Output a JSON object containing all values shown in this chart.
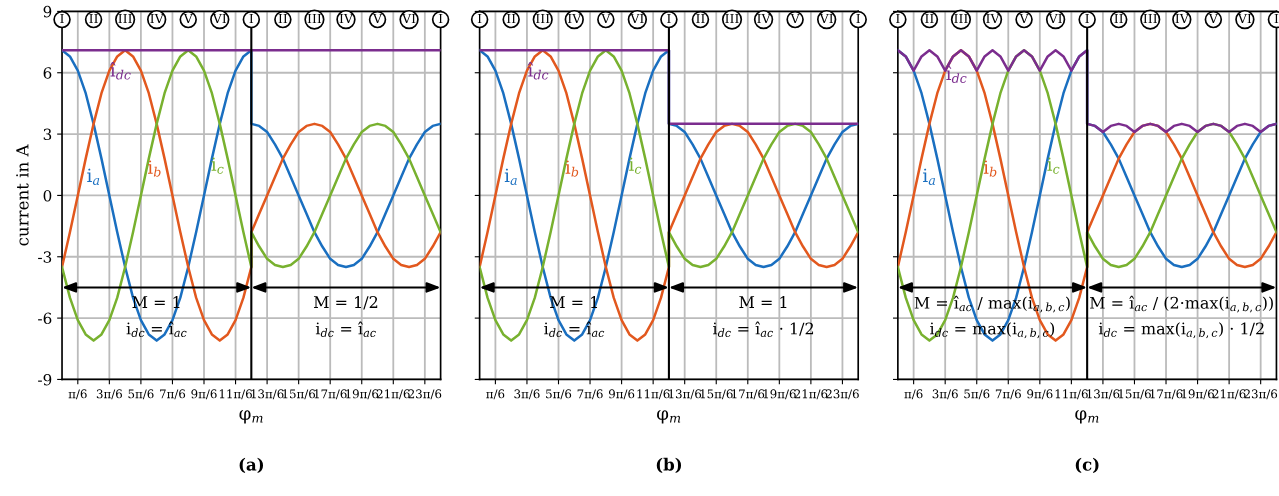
{
  "chart_data": [
    {
      "type": "line",
      "title": "(a)",
      "xlabel": "φ$_{m}$",
      "ylabel": "current in A",
      "legend": false,
      "grid": true,
      "x": [
        0,
        0.2618,
        0.5236,
        0.7854,
        1.0472,
        1.309,
        1.5708,
        1.8326,
        2.0944,
        2.3562,
        2.618,
        2.8798,
        3.1416,
        3.4034,
        3.6652,
        3.927,
        4.1888,
        4.4506,
        4.7124,
        4.9742,
        5.236,
        5.4978,
        5.7596,
        6.0214,
        6.2832,
        6.2832,
        6.545,
        6.8068,
        7.0686,
        7.3304,
        7.5922,
        7.854,
        8.1158,
        8.3776,
        8.6394,
        8.9012,
        9.163,
        9.4248,
        9.6866,
        9.9484,
        10.2102,
        10.472,
        10.7338,
        10.9956,
        11.2574,
        11.5192,
        11.781,
        12.0428,
        12.3046,
        12.5664
      ],
      "series": [
        {
          "name": "i$_{a}$",
          "color": "#1a6fc0",
          "values": [
            7.1,
            6.8,
            6.1,
            5.0,
            3.5,
            1.8,
            0,
            -1.8,
            -3.5,
            -5.0,
            -6.1,
            -6.8,
            -7.1,
            -6.8,
            -6.1,
            -5.0,
            -3.5,
            -1.8,
            0,
            1.8,
            3.5,
            5.0,
            6.1,
            6.8,
            7.1,
            3.5,
            3.4,
            3.1,
            2.5,
            1.8,
            0.9,
            0,
            -0.9,
            -1.8,
            -2.5,
            -3.1,
            -3.4,
            -3.5,
            -3.4,
            -3.1,
            -2.5,
            -1.8,
            -0.9,
            0,
            0.9,
            1.8,
            2.5,
            3.1,
            3.4,
            3.5
          ]
        },
        {
          "name": "i$_{b}$",
          "color": "#e2581e",
          "values": [
            -3.5,
            -1.8,
            0,
            1.8,
            3.5,
            5.0,
            6.1,
            6.8,
            7.1,
            6.8,
            6.1,
            5.0,
            3.5,
            1.8,
            0,
            -1.8,
            -3.5,
            -5.0,
            -6.1,
            -6.8,
            -7.1,
            -6.8,
            -6.1,
            -5.0,
            -3.5,
            -1.8,
            -0.9,
            0,
            0.9,
            1.8,
            2.5,
            3.1,
            3.4,
            3.5,
            3.4,
            3.1,
            2.5,
            1.8,
            0.9,
            0,
            -0.9,
            -1.8,
            -2.5,
            -3.1,
            -3.4,
            -3.5,
            -3.4,
            -3.1,
            -2.5,
            -1.8
          ]
        },
        {
          "name": "i$_{c}$",
          "color": "#78b12f",
          "values": [
            -3.5,
            -5.0,
            -6.1,
            -6.8,
            -7.1,
            -6.8,
            -6.1,
            -5.0,
            -3.5,
            -1.8,
            0,
            1.8,
            3.5,
            5.0,
            6.1,
            6.8,
            7.1,
            6.8,
            6.1,
            5.0,
            3.5,
            1.8,
            0,
            -1.8,
            -3.5,
            -1.8,
            -2.5,
            -3.1,
            -3.4,
            -3.5,
            -3.4,
            -3.1,
            -2.5,
            -1.8,
            -0.9,
            0,
            0.9,
            1.8,
            2.5,
            3.1,
            3.4,
            3.5,
            3.4,
            3.1,
            2.5,
            1.8,
            0.9,
            0,
            -0.9,
            -1.8
          ]
        },
        {
          "name": "î$_{dc}$",
          "color": "#7b2d8e",
          "x": [
            0,
            6.2832,
            12.5664
          ],
          "values": [
            7.1,
            7.1,
            7.1
          ]
        }
      ],
      "xlim": [
        0,
        12.5664
      ],
      "ylim": [
        -9,
        9
      ],
      "yticks": [
        -9,
        -6,
        -3,
        0,
        3,
        6,
        9
      ],
      "xticks": [
        {
          "value": 0.5236,
          "label": "π/6"
        },
        {
          "value": 1.5708,
          "label": "3π/6"
        },
        {
          "value": 2.618,
          "label": "5π/6"
        },
        {
          "value": 3.6652,
          "label": "7π/6"
        },
        {
          "value": 4.7124,
          "label": "9π/6"
        },
        {
          "value": 5.7596,
          "label": "11π/6"
        },
        {
          "value": 6.8068,
          "label": "13π/6"
        },
        {
          "value": 7.854,
          "label": "15π/6"
        },
        {
          "value": 8.9012,
          "label": "17π/6"
        },
        {
          "value": 9.9484,
          "label": "19π/6"
        },
        {
          "value": 10.9956,
          "label": "21π/6"
        },
        {
          "value": 12.0428,
          "label": "23π/6"
        }
      ],
      "ref_lines": [
        {
          "axis": "x",
          "value": 6.2832,
          "color": "#000000"
        }
      ],
      "annotations": [
        {
          "text": "I",
          "x": 0,
          "y": 8.6
        },
        {
          "text": "II",
          "x": 1.0472,
          "y": 8.6
        },
        {
          "text": "III",
          "x": 2.0944,
          "y": 8.6
        },
        {
          "text": "IV",
          "x": 3.1416,
          "y": 8.6
        },
        {
          "text": "V",
          "x": 4.1888,
          "y": 8.6
        },
        {
          "text": "VI",
          "x": 5.236,
          "y": 8.6
        },
        {
          "text": "I",
          "x": 6.2832,
          "y": 8.6
        },
        {
          "text": "II",
          "x": 7.3304,
          "y": 8.6
        },
        {
          "text": "III",
          "x": 8.3776,
          "y": 8.6
        },
        {
          "text": "IV",
          "x": 9.4248,
          "y": 8.6
        },
        {
          "text": "V",
          "x": 10.472,
          "y": 8.6
        },
        {
          "text": "VI",
          "x": 11.5192,
          "y": 8.6
        },
        {
          "text": "I",
          "x": 12.5664,
          "y": 8.6
        },
        "M = 1",
        "i$_{dc}$ = î$_{ac}$",
        "M = 1/2",
        "i$_{dc}$ = î$_{ac}$"
      ]
    },
    {
      "type": "line",
      "title": "(b)",
      "xlabel": "φ$_{m}$",
      "legend": false,
      "grid": true,
      "tick_labels": "x",
      "x": [
        0,
        0.2618,
        0.5236,
        0.7854,
        1.0472,
        1.309,
        1.5708,
        1.8326,
        2.0944,
        2.3562,
        2.618,
        2.8798,
        3.1416,
        3.4034,
        3.6652,
        3.927,
        4.1888,
        4.4506,
        4.7124,
        4.9742,
        5.236,
        5.4978,
        5.7596,
        6.0214,
        6.2832,
        6.2832,
        6.545,
        6.8068,
        7.0686,
        7.3304,
        7.5922,
        7.854,
        8.1158,
        8.3776,
        8.6394,
        8.9012,
        9.163,
        9.4248,
        9.6866,
        9.9484,
        10.2102,
        10.472,
        10.7338,
        10.9956,
        11.2574,
        11.5192,
        11.781,
        12.0428,
        12.3046,
        12.5664
      ],
      "series": [
        {
          "name": "i$_{a}$",
          "color": "#1a6fc0",
          "values": [
            7.1,
            6.8,
            6.1,
            5.0,
            3.5,
            1.8,
            0,
            -1.8,
            -3.5,
            -5.0,
            -6.1,
            -6.8,
            -7.1,
            -6.8,
            -6.1,
            -5.0,
            -3.5,
            -1.8,
            0,
            1.8,
            3.5,
            5.0,
            6.1,
            6.8,
            7.1,
            3.5,
            3.4,
            3.1,
            2.5,
            1.8,
            0.9,
            0,
            -0.9,
            -1.8,
            -2.5,
            -3.1,
            -3.4,
            -3.5,
            -3.4,
            -3.1,
            -2.5,
            -1.8,
            -0.9,
            0,
            0.9,
            1.8,
            2.5,
            3.1,
            3.4,
            3.5
          ]
        },
        {
          "name": "i$_{b}$",
          "color": "#e2581e",
          "values": [
            -3.5,
            -1.8,
            0,
            1.8,
            3.5,
            5.0,
            6.1,
            6.8,
            7.1,
            6.8,
            6.1,
            5.0,
            3.5,
            1.8,
            0,
            -1.8,
            -3.5,
            -5.0,
            -6.1,
            -6.8,
            -7.1,
            -6.8,
            -6.1,
            -5.0,
            -3.5,
            -1.8,
            -0.9,
            0,
            0.9,
            1.8,
            2.5,
            3.1,
            3.4,
            3.5,
            3.4,
            3.1,
            2.5,
            1.8,
            0.9,
            0,
            -0.9,
            -1.8,
            -2.5,
            -3.1,
            -3.4,
            -3.5,
            -3.4,
            -3.1,
            -2.5,
            -1.8
          ]
        },
        {
          "name": "i$_{c}$",
          "color": "#78b12f",
          "values": [
            -3.5,
            -5.0,
            -6.1,
            -6.8,
            -7.1,
            -6.8,
            -6.1,
            -5.0,
            -3.5,
            -1.8,
            0,
            1.8,
            3.5,
            5.0,
            6.1,
            6.8,
            7.1,
            6.8,
            6.1,
            5.0,
            3.5,
            1.8,
            0,
            -1.8,
            -3.5,
            -1.8,
            -2.5,
            -3.1,
            -3.4,
            -3.5,
            -3.4,
            -3.1,
            -2.5,
            -1.8,
            -0.9,
            0,
            0.9,
            1.8,
            2.5,
            3.1,
            3.4,
            3.5,
            3.4,
            3.1,
            2.5,
            1.8,
            0.9,
            0,
            -0.9,
            -1.8
          ]
        },
        {
          "name": "î$_{dc}$",
          "color": "#7b2d8e",
          "x": [
            0,
            6.2832,
            6.2832,
            12.5664
          ],
          "values": [
            7.1,
            7.1,
            3.5,
            3.5
          ]
        }
      ],
      "xlim": [
        0,
        12.5664
      ],
      "ylim": [
        -9,
        9
      ],
      "yticks": [
        -9,
        -6,
        -3,
        0,
        3,
        6,
        9
      ],
      "xticks": [
        {
          "value": 0.5236,
          "label": "π/6"
        },
        {
          "value": 1.5708,
          "label": "3π/6"
        },
        {
          "value": 2.618,
          "label": "5π/6"
        },
        {
          "value": 3.6652,
          "label": "7π/6"
        },
        {
          "value": 4.7124,
          "label": "9π/6"
        },
        {
          "value": 5.7596,
          "label": "11π/6"
        },
        {
          "value": 6.8068,
          "label": "13π/6"
        },
        {
          "value": 7.854,
          "label": "15π/6"
        },
        {
          "value": 8.9012,
          "label": "17π/6"
        },
        {
          "value": 9.9484,
          "label": "19π/6"
        },
        {
          "value": 10.9956,
          "label": "21π/6"
        },
        {
          "value": 12.0428,
          "label": "23π/6"
        }
      ],
      "ref_lines": [
        {
          "axis": "x",
          "value": 6.2832,
          "color": "#000000"
        }
      ],
      "annotations": [
        {
          "text": "I",
          "x": 0,
          "y": 8.6
        },
        {
          "text": "II",
          "x": 1.0472,
          "y": 8.6
        },
        {
          "text": "III",
          "x": 2.0944,
          "y": 8.6
        },
        {
          "text": "IV",
          "x": 3.1416,
          "y": 8.6
        },
        {
          "text": "V",
          "x": 4.1888,
          "y": 8.6
        },
        {
          "text": "VI",
          "x": 5.236,
          "y": 8.6
        },
        {
          "text": "I",
          "x": 6.2832,
          "y": 8.6
        },
        {
          "text": "II",
          "x": 7.3304,
          "y": 8.6
        },
        {
          "text": "III",
          "x": 8.3776,
          "y": 8.6
        },
        {
          "text": "IV",
          "x": 9.4248,
          "y": 8.6
        },
        {
          "text": "V",
          "x": 10.472,
          "y": 8.6
        },
        {
          "text": "VI",
          "x": 11.5192,
          "y": 8.6
        },
        {
          "text": "I",
          "x": 12.5664,
          "y": 8.6
        },
        "M = 1",
        "i$_{dc}$ = î$_{ac}$",
        "M = 1",
        "i$_{dc}$ = î$_{ac}$ · 1/2"
      ]
    },
    {
      "type": "line",
      "title": "(c)",
      "xlabel": "φ$_{m}$",
      "legend": false,
      "grid": true,
      "tick_labels": "x",
      "x": [
        0,
        0.2618,
        0.5236,
        0.7854,
        1.0472,
        1.309,
        1.5708,
        1.8326,
        2.0944,
        2.3562,
        2.618,
        2.8798,
        3.1416,
        3.4034,
        3.6652,
        3.927,
        4.1888,
        4.4506,
        4.7124,
        4.9742,
        5.236,
        5.4978,
        5.7596,
        6.0214,
        6.2832,
        6.2832,
        6.545,
        6.8068,
        7.0686,
        7.3304,
        7.5922,
        7.854,
        8.1158,
        8.3776,
        8.6394,
        8.9012,
        9.163,
        9.4248,
        9.6866,
        9.9484,
        10.2102,
        10.472,
        10.7338,
        10.9956,
        11.2574,
        11.5192,
        11.781,
        12.0428,
        12.3046,
        12.5664
      ],
      "series": [
        {
          "name": "i$_{a}$",
          "color": "#1a6fc0",
          "values": [
            7.1,
            6.8,
            6.1,
            5.0,
            3.5,
            1.8,
            0,
            -1.8,
            -3.5,
            -5.0,
            -6.1,
            -6.8,
            -7.1,
            -6.8,
            -6.1,
            -5.0,
            -3.5,
            -1.8,
            0,
            1.8,
            3.5,
            5.0,
            6.1,
            6.8,
            7.1,
            3.5,
            3.4,
            3.1,
            2.5,
            1.8,
            0.9,
            0,
            -0.9,
            -1.8,
            -2.5,
            -3.1,
            -3.4,
            -3.5,
            -3.4,
            -3.1,
            -2.5,
            -1.8,
            -0.9,
            0,
            0.9,
            1.8,
            2.5,
            3.1,
            3.4,
            3.5
          ]
        },
        {
          "name": "i$_{b}$",
          "color": "#e2581e",
          "values": [
            -3.5,
            -1.8,
            0,
            1.8,
            3.5,
            5.0,
            6.1,
            6.8,
            7.1,
            6.8,
            6.1,
            5.0,
            3.5,
            1.8,
            0,
            -1.8,
            -3.5,
            -5.0,
            -6.1,
            -6.8,
            -7.1,
            -6.8,
            -6.1,
            -5.0,
            -3.5,
            -1.8,
            -0.9,
            0,
            0.9,
            1.8,
            2.5,
            3.1,
            3.4,
            3.5,
            3.4,
            3.1,
            2.5,
            1.8,
            0.9,
            0,
            -0.9,
            -1.8,
            -2.5,
            -3.1,
            -3.4,
            -3.5,
            -3.4,
            -3.1,
            -2.5,
            -1.8
          ]
        },
        {
          "name": "i$_{c}$",
          "color": "#78b12f",
          "values": [
            -3.5,
            -5.0,
            -6.1,
            -6.8,
            -7.1,
            -6.8,
            -6.1,
            -5.0,
            -3.5,
            -1.8,
            0,
            1.8,
            3.5,
            5.0,
            6.1,
            6.8,
            7.1,
            6.8,
            6.1,
            5.0,
            3.5,
            1.8,
            0,
            -1.8,
            -3.5,
            -1.8,
            -2.5,
            -3.1,
            -3.4,
            -3.5,
            -3.4,
            -3.1,
            -2.5,
            -1.8,
            -0.9,
            0,
            0.9,
            1.8,
            2.5,
            3.1,
            3.4,
            3.5,
            3.4,
            3.1,
            2.5,
            1.8,
            0.9,
            0,
            -0.9,
            -1.8
          ]
        },
        {
          "name": "î$_{dc}$",
          "color": "#7b2d8e",
          "values": [
            7.1,
            6.8,
            6.1,
            6.8,
            7.1,
            6.8,
            6.1,
            6.8,
            7.1,
            6.8,
            6.1,
            6.8,
            7.1,
            6.8,
            6.1,
            6.8,
            7.1,
            6.8,
            6.1,
            6.8,
            7.1,
            6.8,
            6.1,
            6.8,
            7.1,
            3.5,
            3.4,
            3.1,
            3.4,
            3.5,
            3.4,
            3.1,
            3.4,
            3.5,
            3.4,
            3.1,
            3.4,
            3.5,
            3.4,
            3.1,
            3.4,
            3.5,
            3.4,
            3.1,
            3.4,
            3.5,
            3.4,
            3.1,
            3.4,
            3.5
          ]
        }
      ],
      "xlim": [
        0,
        12.5664
      ],
      "ylim": [
        -9,
        9
      ],
      "yticks": [
        -9,
        -6,
        -3,
        0,
        3,
        6,
        9
      ],
      "xticks": [
        {
          "value": 0.5236,
          "label": "π/6"
        },
        {
          "value": 1.5708,
          "label": "3π/6"
        },
        {
          "value": 2.618,
          "label": "5π/6"
        },
        {
          "value": 3.6652,
          "label": "7π/6"
        },
        {
          "value": 4.7124,
          "label": "9π/6"
        },
        {
          "value": 5.7596,
          "label": "11π/6"
        },
        {
          "value": 6.8068,
          "label": "13π/6"
        },
        {
          "value": 7.854,
          "label": "15π/6"
        },
        {
          "value": 8.9012,
          "label": "17π/6"
        },
        {
          "value": 9.9484,
          "label": "19π/6"
        },
        {
          "value": 10.9956,
          "label": "21π/6"
        },
        {
          "value": 12.0428,
          "label": "23π/6"
        }
      ],
      "ref_lines": [
        {
          "axis": "x",
          "value": 6.2832,
          "color": "#000000"
        }
      ],
      "annotations": [
        {
          "text": "I",
          "x": 0,
          "y": 8.6
        },
        {
          "text": "II",
          "x": 1.0472,
          "y": 8.6
        },
        {
          "text": "III",
          "x": 2.0944,
          "y": 8.6
        },
        {
          "text": "IV",
          "x": 3.1416,
          "y": 8.6
        },
        {
          "text": "V",
          "x": 4.1888,
          "y": 8.6
        },
        {
          "text": "VI",
          "x": 5.236,
          "y": 8.6
        },
        {
          "text": "I",
          "x": 6.2832,
          "y": 8.6
        },
        {
          "text": "II",
          "x": 7.3304,
          "y": 8.6
        },
        {
          "text": "III",
          "x": 8.3776,
          "y": 8.6
        },
        {
          "text": "IV",
          "x": 9.4248,
          "y": 8.6
        },
        {
          "text": "V",
          "x": 10.472,
          "y": 8.6
        },
        {
          "text": "VI",
          "x": 11.5192,
          "y": 8.6
        },
        {
          "text": "I",
          "x": 12.5664,
          "y": 8.6
        },
        "M = î$_{ac}$ / max(i$_{a,b,c}$)",
        "i$_{dc}$ = max(i$_{a,b,c}$)",
        "M = î$_{ac}$ / (2·max(i$_{a,b,c}$))",
        "i$_{dc}$ = max(i$_{a,b,c}$) · 1/2"
      ]
    }
  ]
}
